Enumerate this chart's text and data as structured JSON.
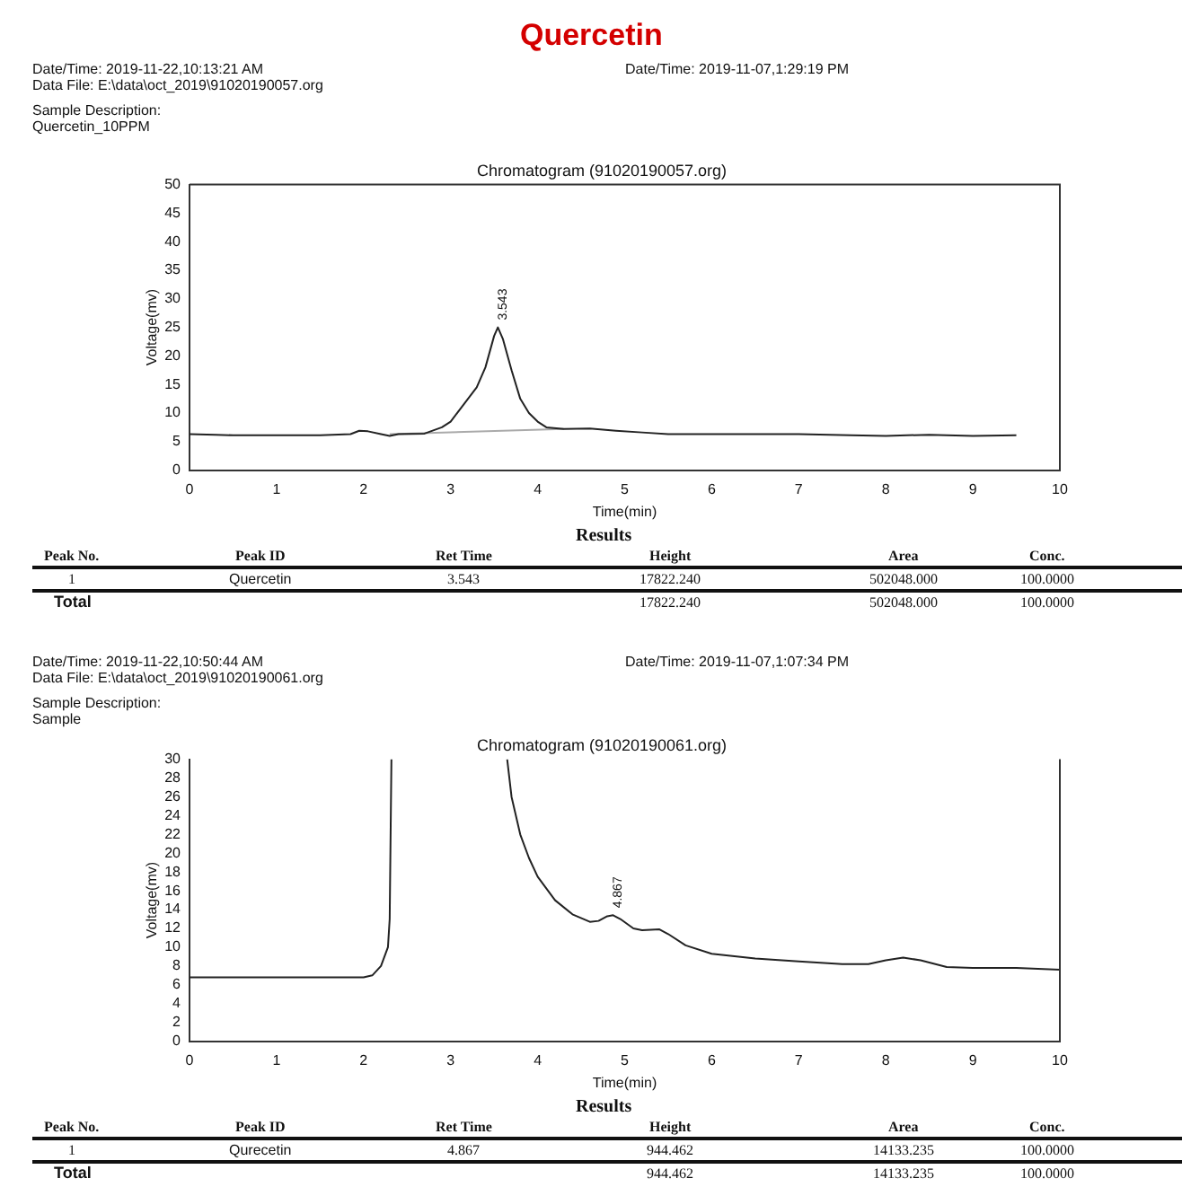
{
  "chart_data": [
    {
      "type": "line",
      "title": "Quercetin",
      "subtitle": "Chromatogram (91020190057.org)",
      "xlabel": "Time(min)",
      "ylabel": "Voltage(mv)",
      "series": [
        {
          "color": "#222222",
          "x": [
            0,
            0.3,
            0.5,
            1.0,
            1.5,
            1.85,
            1.95,
            2.05,
            2.2,
            2.3,
            2.4,
            2.7,
            2.9,
            3.0,
            3.1,
            3.2,
            3.3,
            3.4,
            3.5,
            3.543,
            3.6,
            3.7,
            3.8,
            3.9,
            4.0,
            4.1,
            4.3,
            4.6,
            4.9,
            5.2,
            5.5,
            6.0,
            7.0,
            7.6,
            8.0,
            8.5,
            9.0,
            9.5
          ],
          "values": [
            6.3,
            6.2,
            6.1,
            6.1,
            6.1,
            6.3,
            6.9,
            6.8,
            6.3,
            6.0,
            6.3,
            6.4,
            7.5,
            8.5,
            10.5,
            12.5,
            14.5,
            18.0,
            23.5,
            25,
            23.0,
            17.5,
            12.5,
            10.0,
            8.5,
            7.5,
            7.2,
            7.3,
            6.9,
            6.6,
            6.3,
            6.3,
            6.3,
            6.1,
            6.0,
            6.2,
            6.0,
            6.1
          ]
        },
        {
          "color": "#aaaaaa",
          "x": [
            2.3,
            4.3
          ],
          "values": [
            6.3,
            7.2
          ]
        }
      ],
      "xlim": [
        0,
        10
      ],
      "xticks": [
        0,
        1,
        2,
        3,
        4,
        5,
        6,
        7,
        8,
        9,
        10
      ],
      "ylim": [
        0,
        50
      ],
      "yticks": [
        0,
        5,
        10,
        15,
        20,
        25,
        30,
        35,
        40,
        45,
        50
      ],
      "grid": false,
      "legend": false,
      "marker": "none",
      "line_style": "solid",
      "annotations": [
        {
          "text": "3.543",
          "x": 3.543,
          "y": 25
        },
        "Date/Time: 2019-11-22,10:13:21 AM",
        "Date/Time: 2019-11-07,1:29:19 PM",
        "Data File: E:\\data\\oct_2019\\91020190057.org",
        "Sample Description:",
        "Quercetin_10PPM",
        "Results",
        "Peak No.",
        "Peak ID",
        "Ret Time",
        "Height",
        "Area",
        "Conc.",
        "1",
        "Quercetin",
        "3.543",
        "17822.240",
        "502048.000",
        "100.0000",
        "Total",
        "17822.240",
        "502048.000",
        "100.0000"
      ]
    },
    {
      "type": "line",
      "subtitle": "Chromatogram (91020190061.org)",
      "xlabel": "Time(min)",
      "ylabel": "Voltage(mv)",
      "series": [
        {
          "color": "#222222",
          "x": [
            0,
            1,
            2.0,
            2.1,
            2.2,
            2.28,
            2.3,
            2.32,
            3.0,
            3.65,
            3.7,
            3.8,
            3.9,
            4.0,
            4.2,
            4.4,
            4.6,
            4.7,
            4.8,
            4.867,
            4.95,
            5.1,
            5.2,
            5.4,
            5.5,
            5.7,
            6.0,
            6.5,
            7.0,
            7.5,
            7.8,
            8.0,
            8.2,
            8.4,
            8.7,
            9.0,
            9.5,
            10.0
          ],
          "values": [
            6.8,
            6.8,
            6.8,
            7.0,
            8.0,
            10,
            13,
            30,
            null,
            30,
            26,
            22,
            19.5,
            17.5,
            15,
            13.5,
            12.7,
            12.8,
            13.3,
            13.4,
            13.0,
            12.0,
            11.8,
            11.9,
            11.4,
            10.2,
            9.3,
            8.8,
            8.5,
            8.2,
            8.2,
            8.6,
            8.9,
            8.6,
            7.9,
            7.8,
            7.8,
            7.6
          ]
        }
      ],
      "xlim": [
        0,
        10
      ],
      "xticks": [
        0,
        1,
        2,
        3,
        4,
        5,
        6,
        7,
        8,
        9,
        10
      ],
      "ylim": [
        0,
        30
      ],
      "yticks": [
        0,
        2,
        4,
        6,
        8,
        10,
        12,
        14,
        16,
        18,
        20,
        22,
        24,
        26,
        28,
        30
      ],
      "grid": false,
      "legend": false,
      "marker": "none",
      "line_style": "solid",
      "annotations": [
        {
          "text": "4.867",
          "x": 4.867,
          "y": 13.4
        },
        "Date/Time: 2019-11-22,10:50:44 AM",
        "Date/Time: 2019-11-07,1:07:34 PM",
        "Data File: E:\\data\\oct_2019\\91020190061.org",
        "Sample Description:",
        "Sample",
        "Results",
        "Peak No.",
        "Peak ID",
        "Ret Time",
        "Height",
        "Area",
        "Conc.",
        "1",
        "Qurecetin",
        "4.867",
        "944.462",
        "14133.235",
        "100.0000",
        "Total",
        "944.462",
        "14133.235",
        "100.0000"
      ]
    }
  ]
}
